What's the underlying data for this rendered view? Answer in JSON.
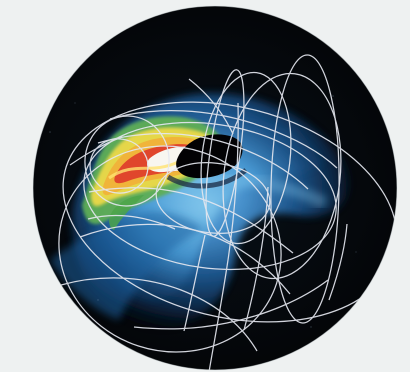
{
  "image": {
    "subject": "space-plasma-disk",
    "colors": {
      "paper": "#eef1f1",
      "space": "#05080c",
      "deep_blue": "#0d2848",
      "mid_blue": "#1f5f9a",
      "light_blue": "#6fb4df",
      "green": "#4ca44a",
      "yellow": "#e8d84a",
      "orange": "#f0b33a",
      "red": "#e0462c",
      "white_core": "#f8f6f0",
      "shadow": "#020204",
      "field_lines": "#e4e7ef"
    },
    "icons": [
      "plasma-disk-icon",
      "field-line-icon",
      "shadow-icon"
    ]
  }
}
